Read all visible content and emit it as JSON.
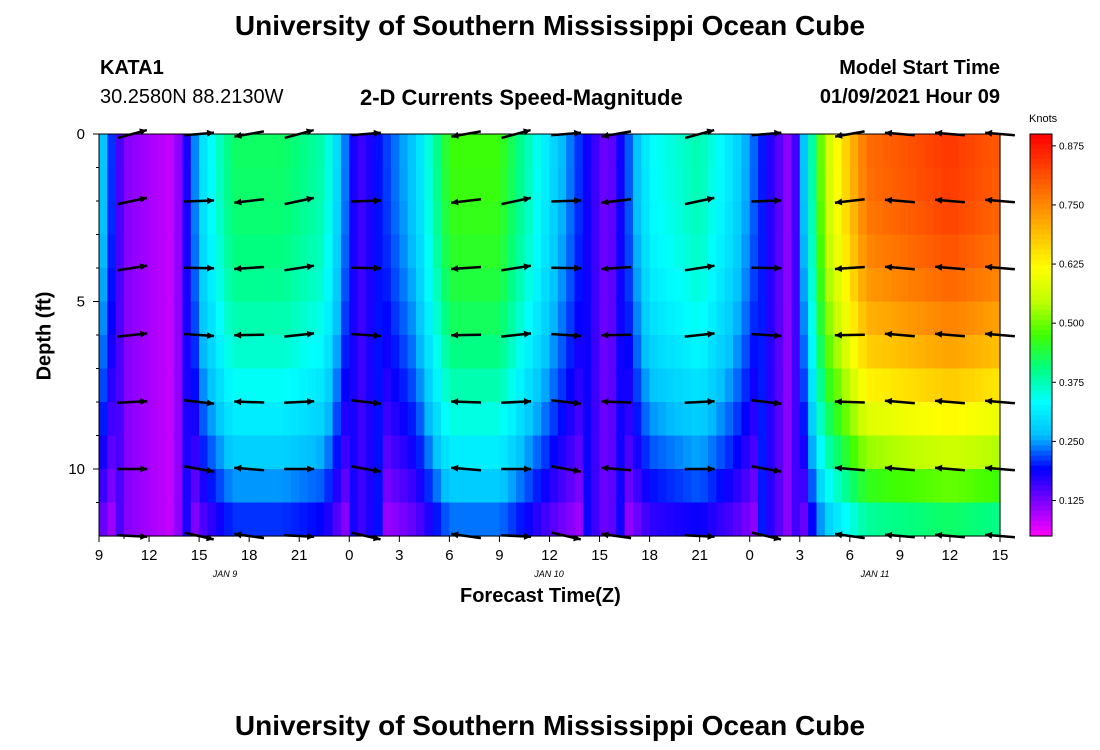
{
  "header": {
    "title": "University of Southern Mississippi Ocean Cube",
    "station_id": "KATA1",
    "coordinates": "30.2580N 88.2130W",
    "subtitle": "2-D Currents Speed-Magnitude",
    "model_start_label": "Model Start Time",
    "model_start_value": "01/09/2021 Hour 09"
  },
  "footer": {
    "title": "University of Southern Mississippi Ocean Cube"
  },
  "colorbar": {
    "unit": "Knots",
    "ticks": [
      "0.125",
      "0.250",
      "0.375",
      "0.500",
      "0.625",
      "0.750",
      "0.875"
    ],
    "range": [
      0.05,
      0.9
    ],
    "colors": [
      "#ff00ff",
      "#8000ff",
      "#0000ff",
      "#00c0ff",
      "#00ffff",
      "#00ff80",
      "#40ff00",
      "#c0ff00",
      "#ffff00",
      "#ffc000",
      "#ff8000",
      "#ff4000",
      "#ff0000"
    ]
  },
  "chart_data": {
    "type": "heatmap",
    "xlabel": "Forecast Time(Z)",
    "ylabel": "Depth (ft)",
    "ylim": [
      0,
      12
    ],
    "y_ticks": [
      "0",
      "5",
      "10"
    ],
    "x_ticks": [
      "9",
      "12",
      "15",
      "18",
      "21",
      "0",
      "3",
      "6",
      "9",
      "12",
      "15",
      "18",
      "21",
      "0",
      "3",
      "6",
      "9",
      "12",
      "15"
    ],
    "date_labels": [
      "JAN 9",
      "JAN 10",
      "JAN 11"
    ],
    "time_hours": [
      0,
      3,
      6,
      9,
      12,
      15,
      18,
      21,
      24,
      27,
      30,
      33,
      36,
      39,
      42,
      45,
      48,
      51,
      54
    ],
    "speed_knots_by_time": [
      0.3,
      0.12,
      0.08,
      0.3,
      0.42,
      0.42,
      0.38,
      0.15,
      0.28,
      0.47,
      0.47,
      0.3,
      0.12,
      0.33,
      0.38,
      0.3,
      0.1,
      0.55,
      0.78,
      0.84,
      0.8
    ],
    "speed_time_hours": [
      0,
      1.5,
      4.5,
      6.2,
      8,
      11,
      13.5,
      15.5,
      19,
      21,
      24,
      27,
      30.5,
      33,
      36,
      38,
      41.5,
      43.5,
      46,
      51,
      54
    ]
  }
}
